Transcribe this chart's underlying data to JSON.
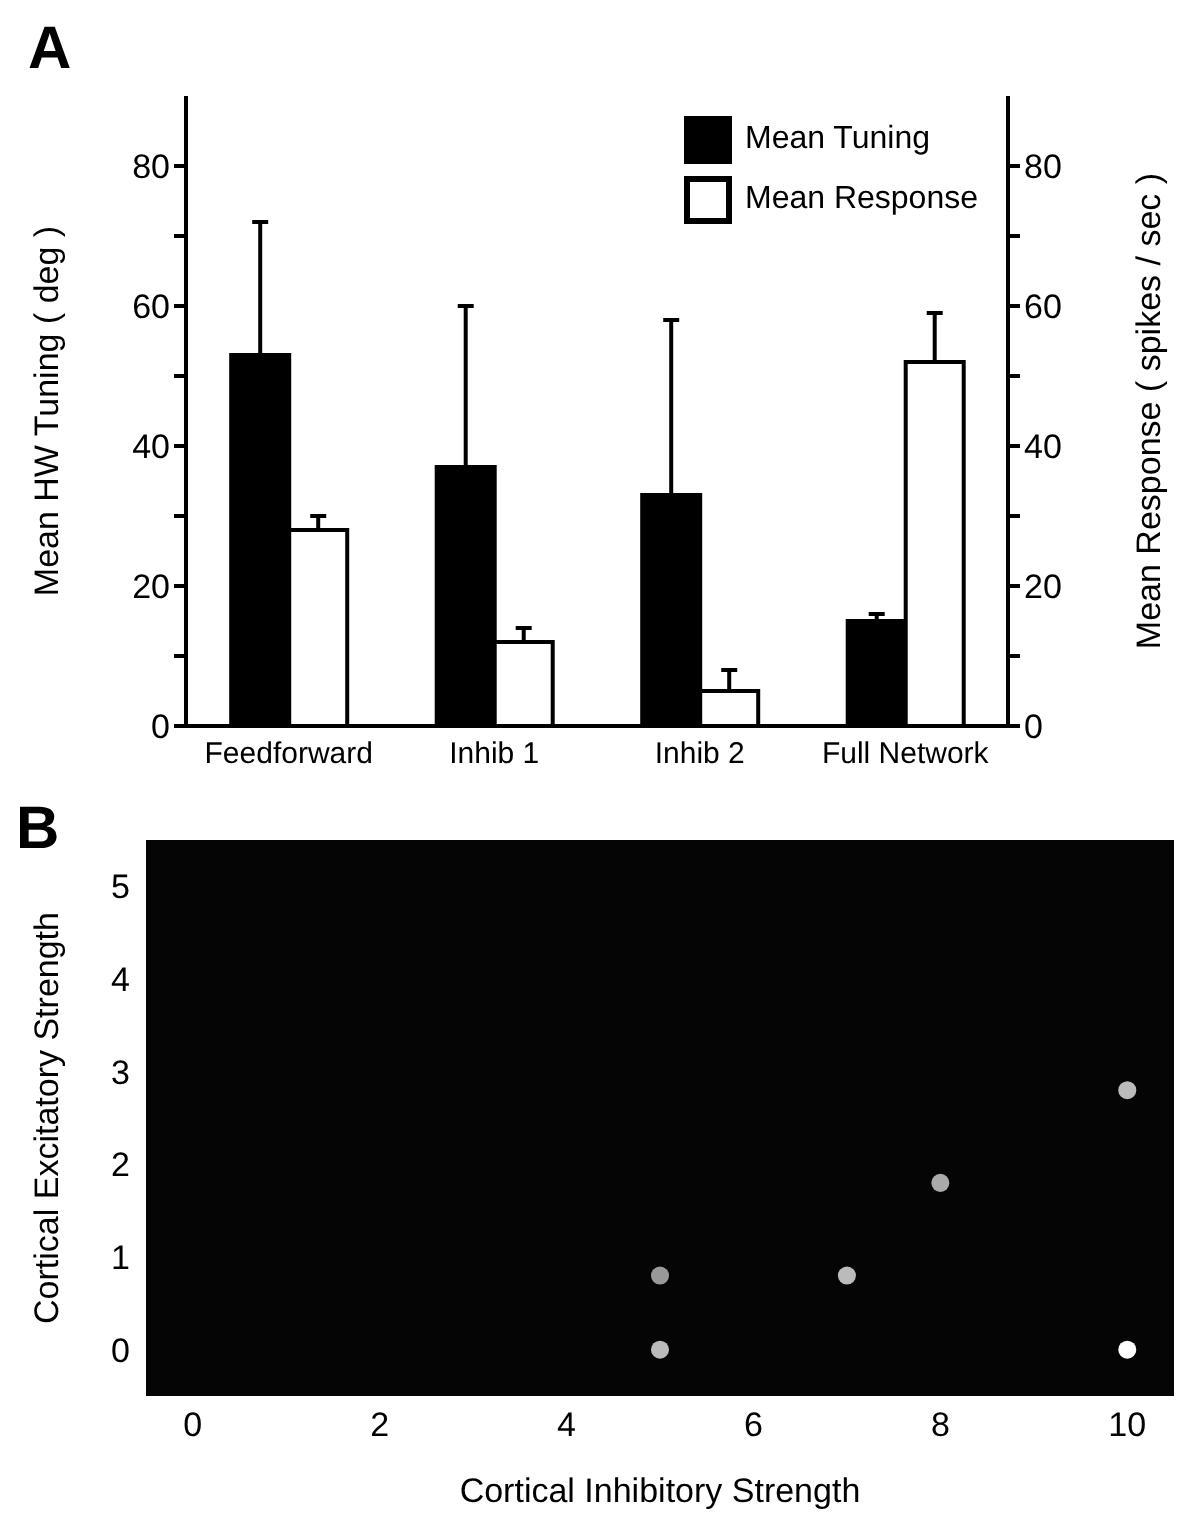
{
  "chart_data": [
    {
      "type": "bar",
      "title": "A",
      "ylabel": "Mean HW Tuning ( deg )",
      "y2label": "Mean Response ( spikes / sec )",
      "categories": [
        "Feedforward",
        "Inhib 1",
        "Inhib 2",
        "Full Network"
      ],
      "series": [
        {
          "name": "Mean Tuning",
          "color": "#000000",
          "values": [
            53,
            37,
            33,
            15
          ],
          "errors": [
            [
              53,
              72
            ],
            [
              37,
              60
            ],
            [
              33,
              58
            ],
            [
              15,
              16
            ]
          ]
        },
        {
          "name": "Mean Response",
          "color": "#ffffff",
          "axis": "y2",
          "values": [
            28,
            12,
            5,
            52
          ],
          "errors": [
            [
              28,
              30
            ],
            [
              12,
              14
            ],
            [
              5,
              8
            ],
            [
              52,
              59
            ]
          ]
        }
      ],
      "ylim": [
        0,
        90
      ],
      "yticks": [
        0,
        {
          "value": 10,
          "label": null
        },
        20,
        {
          "value": 30,
          "label": null
        },
        40,
        {
          "value": 50,
          "label": null
        },
        60,
        {
          "value": 70,
          "label": null
        },
        80
      ],
      "y2lim": [
        0,
        90
      ],
      "y2ticks": [
        0,
        {
          "value": 10,
          "label": null
        },
        20,
        {
          "value": 30,
          "label": null
        },
        40,
        {
          "value": 50,
          "label": null
        },
        60,
        {
          "value": 70,
          "label": null
        },
        80
      ],
      "legend": "top right",
      "grid": false
    },
    {
      "type": "scatter",
      "title": "B",
      "xlabel": "Cortical Inhibitory Strength",
      "ylabel": "Cortical Excitatory Strength",
      "x": [
        5,
        5,
        7,
        8,
        10,
        10
      ],
      "values": [
        0,
        0.8,
        0.8,
        1.8,
        2.8,
        0
      ],
      "colors": [
        "#bbbbbb",
        "#999999",
        "#bbbbbb",
        "#aaaaaa",
        "#bbbbbb",
        "#ffffff"
      ],
      "marker": "circle",
      "xlim": [
        -0.5,
        10.5
      ],
      "xticks": [
        0,
        2,
        4,
        6,
        8,
        10
      ],
      "ylim": [
        -0.5,
        5.5
      ],
      "yticks": [
        0,
        1,
        2,
        3,
        4,
        5
      ],
      "grid": false
    }
  ]
}
